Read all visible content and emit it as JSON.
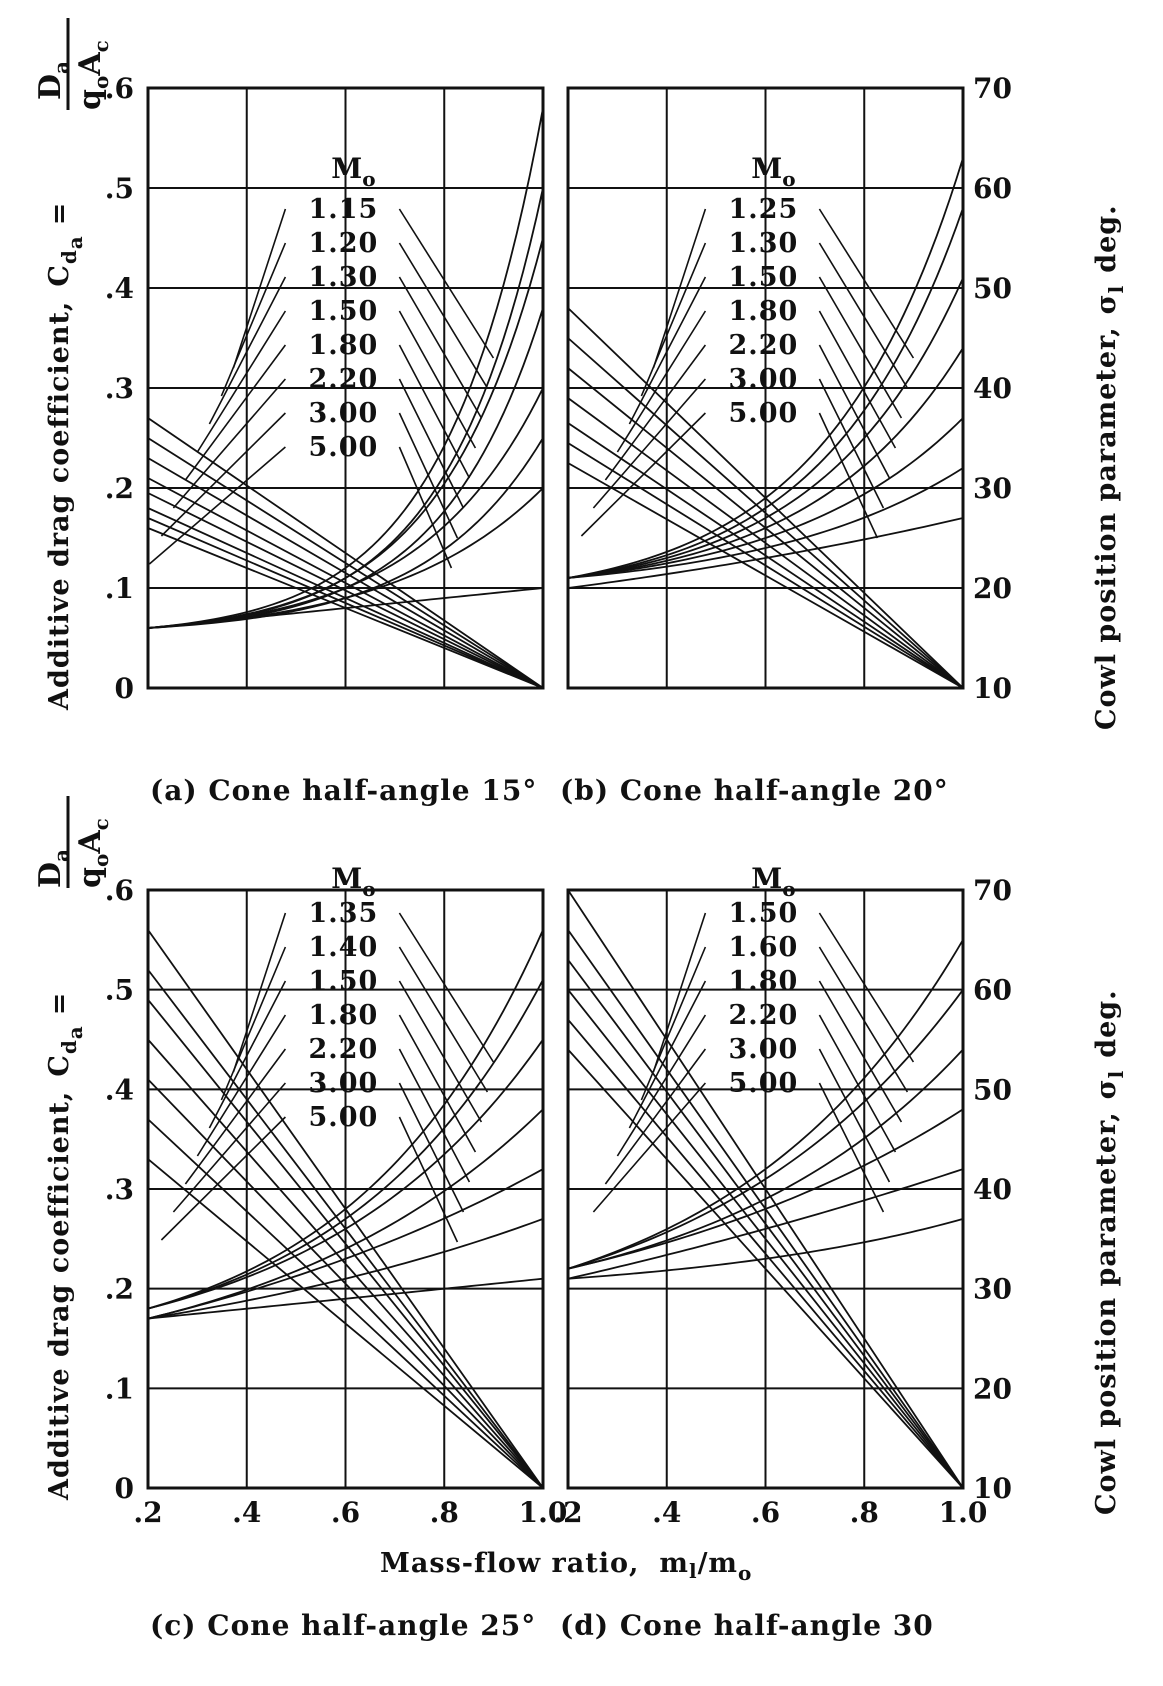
{
  "figure": {
    "left_axis_title": "Additive drag coefficient,",
    "left_axis_symbol": "C",
    "left_axis_symbol_sub": "d",
    "left_axis_symbol_subsub": "a",
    "equals": "=",
    "fraction_numerator": "D",
    "fraction_numerator_sub": "a",
    "fraction_denominator": "q",
    "fraction_denominator_sub": "o",
    "fraction_denominator_tail": "A",
    "fraction_denominator_tail_sub": "c",
    "right_axis_title": "Cowl position parameter,",
    "right_axis_symbol": "σ",
    "right_axis_symbol_sub": "l",
    "right_axis_unit": "deg.",
    "x_axis_title": "Mass-flow ratio,",
    "x_axis_symbol": "m",
    "x_axis_symbol_sub": "l",
    "x_axis_slash": "/m",
    "x_axis_slash_sub": "o",
    "mach_heading": "M",
    "mach_heading_sub": "o",
    "left_ticks": [
      "0",
      ".1",
      ".2",
      ".3",
      ".4",
      ".5",
      ".6"
    ],
    "right_ticks": [
      "10",
      "20",
      "30",
      "40",
      "50",
      "60",
      "70"
    ],
    "x_ticks_left": [
      ".2",
      ".4",
      ".6",
      ".8",
      "1.0"
    ],
    "x_ticks_right": [
      ".2",
      ".4",
      ".6",
      ".8",
      "1.0"
    ]
  },
  "chart_data": [
    {
      "type": "line",
      "caption": "(a) Cone half-angle 15°",
      "x_range": [
        0.2,
        1.0
      ],
      "y_left_range": [
        0,
        0.6
      ],
      "y_right_range": [
        10,
        70
      ],
      "mach_labels": [
        "1.15",
        "1.20",
        "1.30",
        "1.50",
        "1.80",
        "2.20",
        "3.00",
        "5.00"
      ],
      "series_drag": [
        {
          "name": "1.15",
          "x": [
            0.2,
            0.6,
            1.0
          ],
          "y": [
            0.06,
            0.12,
            0.58
          ]
        },
        {
          "name": "1.20",
          "x": [
            0.2,
            0.6,
            1.0
          ],
          "y": [
            0.06,
            0.11,
            0.5
          ]
        },
        {
          "name": "1.30",
          "x": [
            0.2,
            0.6,
            1.0
          ],
          "y": [
            0.06,
            0.11,
            0.45
          ]
        },
        {
          "name": "1.50",
          "x": [
            0.2,
            0.6,
            1.0
          ],
          "y": [
            0.06,
            0.1,
            0.38
          ]
        },
        {
          "name": "1.80",
          "x": [
            0.2,
            0.6,
            1.0
          ],
          "y": [
            0.06,
            0.1,
            0.3
          ]
        },
        {
          "name": "2.20",
          "x": [
            0.2,
            0.6,
            1.0
          ],
          "y": [
            0.06,
            0.09,
            0.25
          ]
        },
        {
          "name": "3.00",
          "x": [
            0.2,
            0.6,
            1.0
          ],
          "y": [
            0.06,
            0.09,
            0.2
          ]
        },
        {
          "name": "5.00",
          "x": [
            0.2,
            0.6,
            1.0
          ],
          "y": [
            0.06,
            0.08,
            0.1
          ]
        }
      ],
      "series_cowl": [
        {
          "name": "1.15",
          "x": [
            0.2,
            1.0
          ],
          "y": [
            37,
            10
          ]
        },
        {
          "name": "1.20",
          "x": [
            0.2,
            1.0
          ],
          "y": [
            35,
            10
          ]
        },
        {
          "name": "1.30",
          "x": [
            0.2,
            1.0
          ],
          "y": [
            33,
            10
          ]
        },
        {
          "name": "1.50",
          "x": [
            0.2,
            1.0
          ],
          "y": [
            31,
            10
          ]
        },
        {
          "name": "1.80",
          "x": [
            0.2,
            1.0
          ],
          "y": [
            29.5,
            10
          ]
        },
        {
          "name": "2.20",
          "x": [
            0.2,
            1.0
          ],
          "y": [
            28,
            10
          ]
        },
        {
          "name": "3.00",
          "x": [
            0.2,
            1.0
          ],
          "y": [
            27,
            10
          ]
        },
        {
          "name": "5.00",
          "x": [
            0.2,
            1.0
          ],
          "y": [
            26,
            10
          ]
        }
      ]
    },
    {
      "type": "line",
      "caption": "(b) Cone half-angle 20°",
      "x_range": [
        0.2,
        1.0
      ],
      "y_left_range": [
        0,
        0.6
      ],
      "y_right_range": [
        10,
        70
      ],
      "mach_labels": [
        "1.25",
        "1.30",
        "1.50",
        "1.80",
        "2.20",
        "3.00",
        "5.00"
      ],
      "series_drag": [
        {
          "name": "1.25",
          "x": [
            0.2,
            0.6,
            1.0
          ],
          "y": [
            0.11,
            0.19,
            0.53
          ]
        },
        {
          "name": "1.30",
          "x": [
            0.2,
            0.6,
            1.0
          ],
          "y": [
            0.11,
            0.18,
            0.48
          ]
        },
        {
          "name": "1.50",
          "x": [
            0.2,
            0.6,
            1.0
          ],
          "y": [
            0.11,
            0.17,
            0.41
          ]
        },
        {
          "name": "1.80",
          "x": [
            0.2,
            0.6,
            1.0
          ],
          "y": [
            0.11,
            0.16,
            0.34
          ]
        },
        {
          "name": "2.20",
          "x": [
            0.2,
            0.6,
            1.0
          ],
          "y": [
            0.11,
            0.15,
            0.27
          ]
        },
        {
          "name": "3.00",
          "x": [
            0.2,
            0.6,
            1.0
          ],
          "y": [
            0.11,
            0.14,
            0.22
          ]
        },
        {
          "name": "5.00",
          "x": [
            0.2,
            0.6,
            1.0
          ],
          "y": [
            0.1,
            0.13,
            0.17
          ]
        }
      ],
      "series_cowl": [
        {
          "name": "1.25",
          "x": [
            0.2,
            1.0
          ],
          "y": [
            48,
            10
          ]
        },
        {
          "name": "1.30",
          "x": [
            0.2,
            1.0
          ],
          "y": [
            45,
            10
          ]
        },
        {
          "name": "1.50",
          "x": [
            0.2,
            1.0
          ],
          "y": [
            42,
            10
          ]
        },
        {
          "name": "1.80",
          "x": [
            0.2,
            1.0
          ],
          "y": [
            39,
            10
          ]
        },
        {
          "name": "2.20",
          "x": [
            0.2,
            1.0
          ],
          "y": [
            36.5,
            10
          ]
        },
        {
          "name": "3.00",
          "x": [
            0.2,
            1.0
          ],
          "y": [
            34.5,
            10
          ]
        },
        {
          "name": "5.00",
          "x": [
            0.2,
            1.0
          ],
          "y": [
            32.5,
            10
          ]
        }
      ]
    },
    {
      "type": "line",
      "caption": "(c) Cone half-angle 25°",
      "x_range": [
        0.2,
        1.0
      ],
      "y_left_range": [
        0,
        0.6
      ],
      "y_right_range": [
        10,
        70
      ],
      "mach_labels": [
        "1.35",
        "1.40",
        "1.50",
        "1.80",
        "2.20",
        "3.00",
        "5.00"
      ],
      "series_drag": [
        {
          "name": "1.35",
          "x": [
            0.2,
            0.6,
            1.0
          ],
          "y": [
            0.18,
            0.28,
            0.56
          ]
        },
        {
          "name": "1.40",
          "x": [
            0.2,
            0.6,
            1.0
          ],
          "y": [
            0.18,
            0.27,
            0.51
          ]
        },
        {
          "name": "1.50",
          "x": [
            0.2,
            0.6,
            1.0
          ],
          "y": [
            0.18,
            0.26,
            0.45
          ]
        },
        {
          "name": "1.80",
          "x": [
            0.2,
            0.6,
            1.0
          ],
          "y": [
            0.17,
            0.24,
            0.38
          ]
        },
        {
          "name": "2.20",
          "x": [
            0.2,
            0.6,
            1.0
          ],
          "y": [
            0.17,
            0.23,
            0.32
          ]
        },
        {
          "name": "3.00",
          "x": [
            0.2,
            0.6,
            1.0
          ],
          "y": [
            0.17,
            0.21,
            0.27
          ]
        },
        {
          "name": "5.00",
          "x": [
            0.2,
            0.6,
            1.0
          ],
          "y": [
            0.17,
            0.19,
            0.21
          ]
        }
      ],
      "series_cowl": [
        {
          "name": "1.35",
          "x": [
            0.2,
            1.0
          ],
          "y": [
            66,
            10
          ]
        },
        {
          "name": "1.40",
          "x": [
            0.2,
            1.0
          ],
          "y": [
            62,
            10
          ]
        },
        {
          "name": "1.50",
          "x": [
            0.2,
            1.0
          ],
          "y": [
            59,
            10
          ]
        },
        {
          "name": "1.80",
          "x": [
            0.2,
            1.0
          ],
          "y": [
            55,
            10
          ]
        },
        {
          "name": "2.20",
          "x": [
            0.2,
            1.0
          ],
          "y": [
            51,
            10
          ]
        },
        {
          "name": "3.00",
          "x": [
            0.2,
            1.0
          ],
          "y": [
            47,
            10
          ]
        },
        {
          "name": "5.00",
          "x": [
            0.2,
            1.0
          ],
          "y": [
            43,
            10
          ]
        }
      ]
    },
    {
      "type": "line",
      "caption": "(d) Cone half-angle 30",
      "x_range": [
        0.2,
        1.0
      ],
      "y_left_range": [
        0,
        0.6
      ],
      "y_right_range": [
        10,
        70
      ],
      "mach_labels": [
        "1.50",
        "1.60",
        "1.80",
        "2.20",
        "3.00",
        "5.00"
      ],
      "series_drag": [
        {
          "name": "1.50",
          "x": [
            0.2,
            0.6,
            1.0
          ],
          "y": [
            0.22,
            0.32,
            0.55
          ]
        },
        {
          "name": "1.60",
          "x": [
            0.2,
            0.6,
            1.0
          ],
          "y": [
            0.22,
            0.31,
            0.5
          ]
        },
        {
          "name": "1.80",
          "x": [
            0.2,
            0.6,
            1.0
          ],
          "y": [
            0.22,
            0.29,
            0.44
          ]
        },
        {
          "name": "2.20",
          "x": [
            0.2,
            0.6,
            1.0
          ],
          "y": [
            0.22,
            0.28,
            0.38
          ]
        },
        {
          "name": "3.00",
          "x": [
            0.2,
            0.6,
            1.0
          ],
          "y": [
            0.21,
            0.26,
            0.32
          ]
        },
        {
          "name": "5.00",
          "x": [
            0.2,
            0.6,
            1.0
          ],
          "y": [
            0.21,
            0.23,
            0.27
          ]
        }
      ],
      "series_cowl": [
        {
          "name": "1.50",
          "x": [
            0.2,
            1.0
          ],
          "y": [
            70,
            10
          ]
        },
        {
          "name": "1.60",
          "x": [
            0.2,
            1.0
          ],
          "y": [
            66,
            10
          ]
        },
        {
          "name": "1.80",
          "x": [
            0.2,
            1.0
          ],
          "y": [
            63,
            10
          ]
        },
        {
          "name": "2.20",
          "x": [
            0.2,
            1.0
          ],
          "y": [
            60,
            10
          ]
        },
        {
          "name": "3.00",
          "x": [
            0.2,
            1.0
          ],
          "y": [
            57,
            10
          ]
        },
        {
          "name": "5.00",
          "x": [
            0.2,
            1.0
          ],
          "y": [
            54,
            10
          ]
        }
      ]
    }
  ]
}
